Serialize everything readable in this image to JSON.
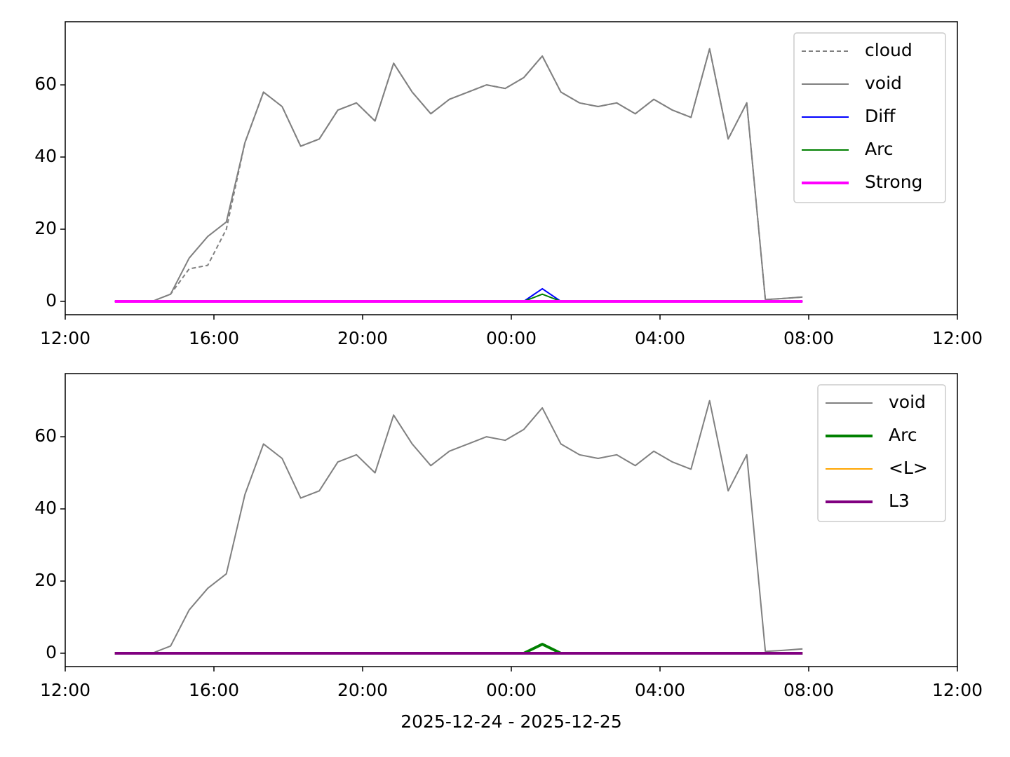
{
  "chart_data": [
    {
      "type": "line",
      "x": [
        "2025-12-24 13:20",
        "2025-12-24 13:50",
        "2025-12-24 14:20",
        "2025-12-24 14:50",
        "2025-12-24 15:20",
        "2025-12-24 15:50",
        "2025-12-24 16:20",
        "2025-12-24 16:50",
        "2025-12-24 17:20",
        "2025-12-24 17:50",
        "2025-12-24 18:20",
        "2025-12-24 18:50",
        "2025-12-24 19:20",
        "2025-12-24 19:50",
        "2025-12-24 20:20",
        "2025-12-24 20:50",
        "2025-12-24 21:20",
        "2025-12-24 21:50",
        "2025-12-24 22:20",
        "2025-12-24 22:50",
        "2025-12-24 23:20",
        "2025-12-24 23:50",
        "2025-12-25 00:20",
        "2025-12-25 00:50",
        "2025-12-25 01:20",
        "2025-12-25 01:50",
        "2025-12-25 02:20",
        "2025-12-25 02:50",
        "2025-12-25 03:20",
        "2025-12-25 03:50",
        "2025-12-25 04:20",
        "2025-12-25 04:50",
        "2025-12-25 05:20",
        "2025-12-25 05:50",
        "2025-12-25 06:20",
        "2025-12-25 06:50",
        "2025-12-25 07:20",
        "2025-12-25 07:50"
      ],
      "series": [
        {
          "name": "cloud",
          "color": "#808080",
          "style": "dashed",
          "values": [
            0,
            0,
            0,
            2,
            9,
            10,
            20,
            44,
            58,
            54,
            43,
            45,
            53,
            55,
            50,
            66,
            58,
            52,
            56,
            58,
            60,
            59,
            62,
            68,
            58,
            55,
            54,
            55,
            52,
            56,
            53,
            51,
            70,
            45,
            55,
            0.5,
            0.8,
            1.2
          ]
        },
        {
          "name": "void",
          "color": "#808080",
          "style": "thin",
          "values": [
            0,
            0,
            0,
            2,
            12,
            18,
            22,
            44,
            58,
            54,
            43,
            45,
            53,
            55,
            50,
            66,
            58,
            52,
            56,
            58,
            60,
            59,
            62,
            68,
            58,
            55,
            54,
            55,
            52,
            56,
            53,
            51,
            70,
            45,
            55,
            0.5,
            0.8,
            1.2
          ]
        },
        {
          "name": "Diff",
          "color": "#0000ff",
          "style": "thin",
          "values": [
            0,
            0,
            0,
            0,
            0,
            0,
            0,
            0,
            0,
            0,
            0,
            0,
            0,
            0,
            0,
            0,
            0,
            0,
            0,
            0,
            0,
            0,
            0,
            3.5,
            0,
            0,
            0,
            0,
            0,
            0,
            0,
            0,
            0,
            0,
            0,
            0,
            0,
            0
          ]
        },
        {
          "name": "Arc",
          "color": "#008000",
          "style": "thin",
          "values": [
            0,
            0,
            0,
            0,
            0,
            0,
            0,
            0,
            0,
            0,
            0,
            0,
            0,
            0,
            0,
            0,
            0,
            0,
            0,
            0,
            0,
            0,
            0,
            2,
            0,
            0,
            0,
            0,
            0,
            0,
            0,
            0,
            0,
            0,
            0,
            0,
            0,
            0
          ]
        },
        {
          "name": "Strong",
          "color": "#ff00ff",
          "style": "thick",
          "values": [
            0,
            0,
            0,
            0,
            0,
            0,
            0,
            0,
            0,
            0,
            0,
            0,
            0,
            0,
            0,
            0,
            0,
            0,
            0,
            0,
            0,
            0,
            0,
            0,
            0,
            0,
            0,
            0,
            0,
            0,
            0,
            0,
            0,
            0,
            0,
            0,
            0,
            0
          ]
        }
      ],
      "xlim": [
        "2025-12-24 12:00",
        "2025-12-25 12:00"
      ],
      "xticks": [
        {
          "value": "2025-12-24 12:00",
          "label": "12:00"
        },
        {
          "value": "2025-12-24 16:00",
          "label": "16:00"
        },
        {
          "value": "2025-12-24 20:00",
          "label": "20:00"
        },
        {
          "value": "2025-12-25 00:00",
          "label": "00:00"
        },
        {
          "value": "2025-12-25 04:00",
          "label": "04:00"
        },
        {
          "value": "2025-12-25 08:00",
          "label": "08:00"
        },
        {
          "value": "2025-12-25 12:00",
          "label": "12:00"
        }
      ],
      "ylim": [
        -3.7,
        77.5
      ],
      "yticks": [
        0,
        20,
        40,
        60
      ],
      "legend": "upper right"
    },
    {
      "type": "line",
      "x": [
        "2025-12-24 13:20",
        "2025-12-24 13:50",
        "2025-12-24 14:20",
        "2025-12-24 14:50",
        "2025-12-24 15:20",
        "2025-12-24 15:50",
        "2025-12-24 16:20",
        "2025-12-24 16:50",
        "2025-12-24 17:20",
        "2025-12-24 17:50",
        "2025-12-24 18:20",
        "2025-12-24 18:50",
        "2025-12-24 19:20",
        "2025-12-24 19:50",
        "2025-12-24 20:20",
        "2025-12-24 20:50",
        "2025-12-24 21:20",
        "2025-12-24 21:50",
        "2025-12-24 22:20",
        "2025-12-24 22:50",
        "2025-12-24 23:20",
        "2025-12-24 23:50",
        "2025-12-25 00:20",
        "2025-12-25 00:50",
        "2025-12-25 01:20",
        "2025-12-25 01:50",
        "2025-12-25 02:20",
        "2025-12-25 02:50",
        "2025-12-25 03:20",
        "2025-12-25 03:50",
        "2025-12-25 04:20",
        "2025-12-25 04:50",
        "2025-12-25 05:20",
        "2025-12-25 05:50",
        "2025-12-25 06:20",
        "2025-12-25 06:50",
        "2025-12-25 07:20",
        "2025-12-25 07:50"
      ],
      "series": [
        {
          "name": "void",
          "color": "#808080",
          "style": "thin",
          "values": [
            0,
            0,
            0,
            2,
            12,
            18,
            22,
            44,
            58,
            54,
            43,
            45,
            53,
            55,
            50,
            66,
            58,
            52,
            56,
            58,
            60,
            59,
            62,
            68,
            58,
            55,
            54,
            55,
            52,
            56,
            53,
            51,
            70,
            45,
            55,
            0.5,
            0.8,
            1.2
          ]
        },
        {
          "name": "Arc",
          "color": "#008000",
          "style": "thick",
          "values": [
            0,
            0,
            0,
            0,
            0,
            0,
            0,
            0,
            0,
            0,
            0,
            0,
            0,
            0,
            0,
            0,
            0,
            0,
            0,
            0,
            0,
            0,
            0,
            2.5,
            0,
            0,
            0,
            0,
            0,
            0,
            0,
            0,
            0,
            0,
            0,
            0,
            0,
            0
          ]
        },
        {
          "name": "<L>",
          "color": "#ffa500",
          "style": "thin",
          "values": [
            0,
            0,
            0,
            0,
            0,
            0,
            0,
            0,
            0,
            0,
            0,
            0,
            0,
            0,
            0,
            0,
            0,
            0,
            0,
            0,
            0,
            0,
            0,
            0,
            0,
            0,
            0,
            0,
            0,
            0,
            0,
            0,
            0,
            0,
            0,
            0,
            0,
            0
          ]
        },
        {
          "name": "L3",
          "color": "#800080",
          "style": "thick",
          "values": [
            0,
            0,
            0,
            0,
            0,
            0,
            0,
            0,
            0,
            0,
            0,
            0,
            0,
            0,
            0,
            0,
            0,
            0,
            0,
            0,
            0,
            0,
            0,
            0,
            0,
            0,
            0,
            0,
            0,
            0,
            0,
            0,
            0,
            0,
            0,
            0,
            0,
            0
          ]
        }
      ],
      "xlim": [
        "2025-12-24 12:00",
        "2025-12-25 12:00"
      ],
      "xticks": [
        {
          "value": "2025-12-24 12:00",
          "label": "12:00"
        },
        {
          "value": "2025-12-24 16:00",
          "label": "16:00"
        },
        {
          "value": "2025-12-24 20:00",
          "label": "20:00"
        },
        {
          "value": "2025-12-25 00:00",
          "label": "00:00"
        },
        {
          "value": "2025-12-25 04:00",
          "label": "04:00"
        },
        {
          "value": "2025-12-25 08:00",
          "label": "08:00"
        },
        {
          "value": "2025-12-25 12:00",
          "label": "12:00"
        }
      ],
      "ylim": [
        -3.7,
        77.5
      ],
      "yticks": [
        0,
        20,
        40,
        60
      ],
      "legend": "upper right",
      "xlabel": "2025-12-24 - 2025-12-25"
    }
  ]
}
